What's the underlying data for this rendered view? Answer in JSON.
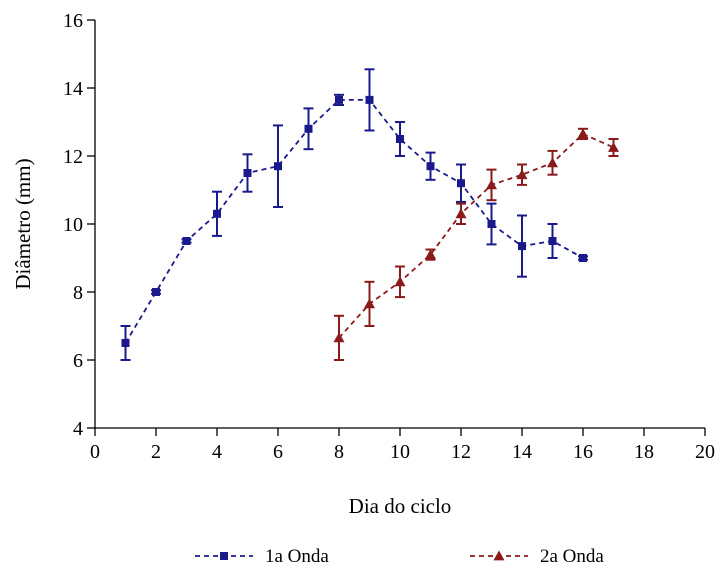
{
  "chart_data": {
    "type": "line",
    "xlabel": "Dia do ciclo",
    "ylabel": "Diâmetro (mm)",
    "xlim": [
      0,
      20
    ],
    "ylim": [
      4,
      16
    ],
    "xticks": [
      0,
      2,
      4,
      6,
      8,
      10,
      12,
      14,
      16,
      18,
      20
    ],
    "yticks": [
      4,
      6,
      8,
      10,
      12,
      14,
      16
    ],
    "grid": false,
    "legend_position": "bottom",
    "series": [
      {
        "name": "1a Onda",
        "color": "#1a1a8c",
        "marker": "square",
        "x": [
          1,
          2,
          3,
          4,
          5,
          6,
          7,
          8,
          9,
          10,
          11,
          12,
          13,
          14,
          15,
          16
        ],
        "y": [
          6.5,
          8.0,
          9.5,
          10.3,
          11.5,
          11.7,
          12.8,
          13.65,
          13.65,
          12.5,
          11.7,
          11.2,
          10.0,
          9.35,
          9.5,
          9.0
        ],
        "err": [
          0.5,
          0.05,
          0.05,
          0.65,
          0.55,
          1.2,
          0.6,
          0.15,
          0.9,
          0.5,
          0.4,
          0.55,
          0.6,
          0.9,
          0.5,
          0.05
        ]
      },
      {
        "name": "2a Onda",
        "color": "#8b1a1a",
        "marker": "triangle",
        "x": [
          8,
          9,
          10,
          11,
          12,
          13,
          14,
          15,
          16,
          17
        ],
        "y": [
          6.65,
          7.65,
          8.3,
          9.1,
          10.3,
          11.15,
          11.45,
          11.8,
          12.65,
          12.25
        ],
        "err": [
          0.65,
          0.65,
          0.45,
          0.15,
          0.3,
          0.45,
          0.3,
          0.35,
          0.15,
          0.25
        ]
      }
    ]
  }
}
